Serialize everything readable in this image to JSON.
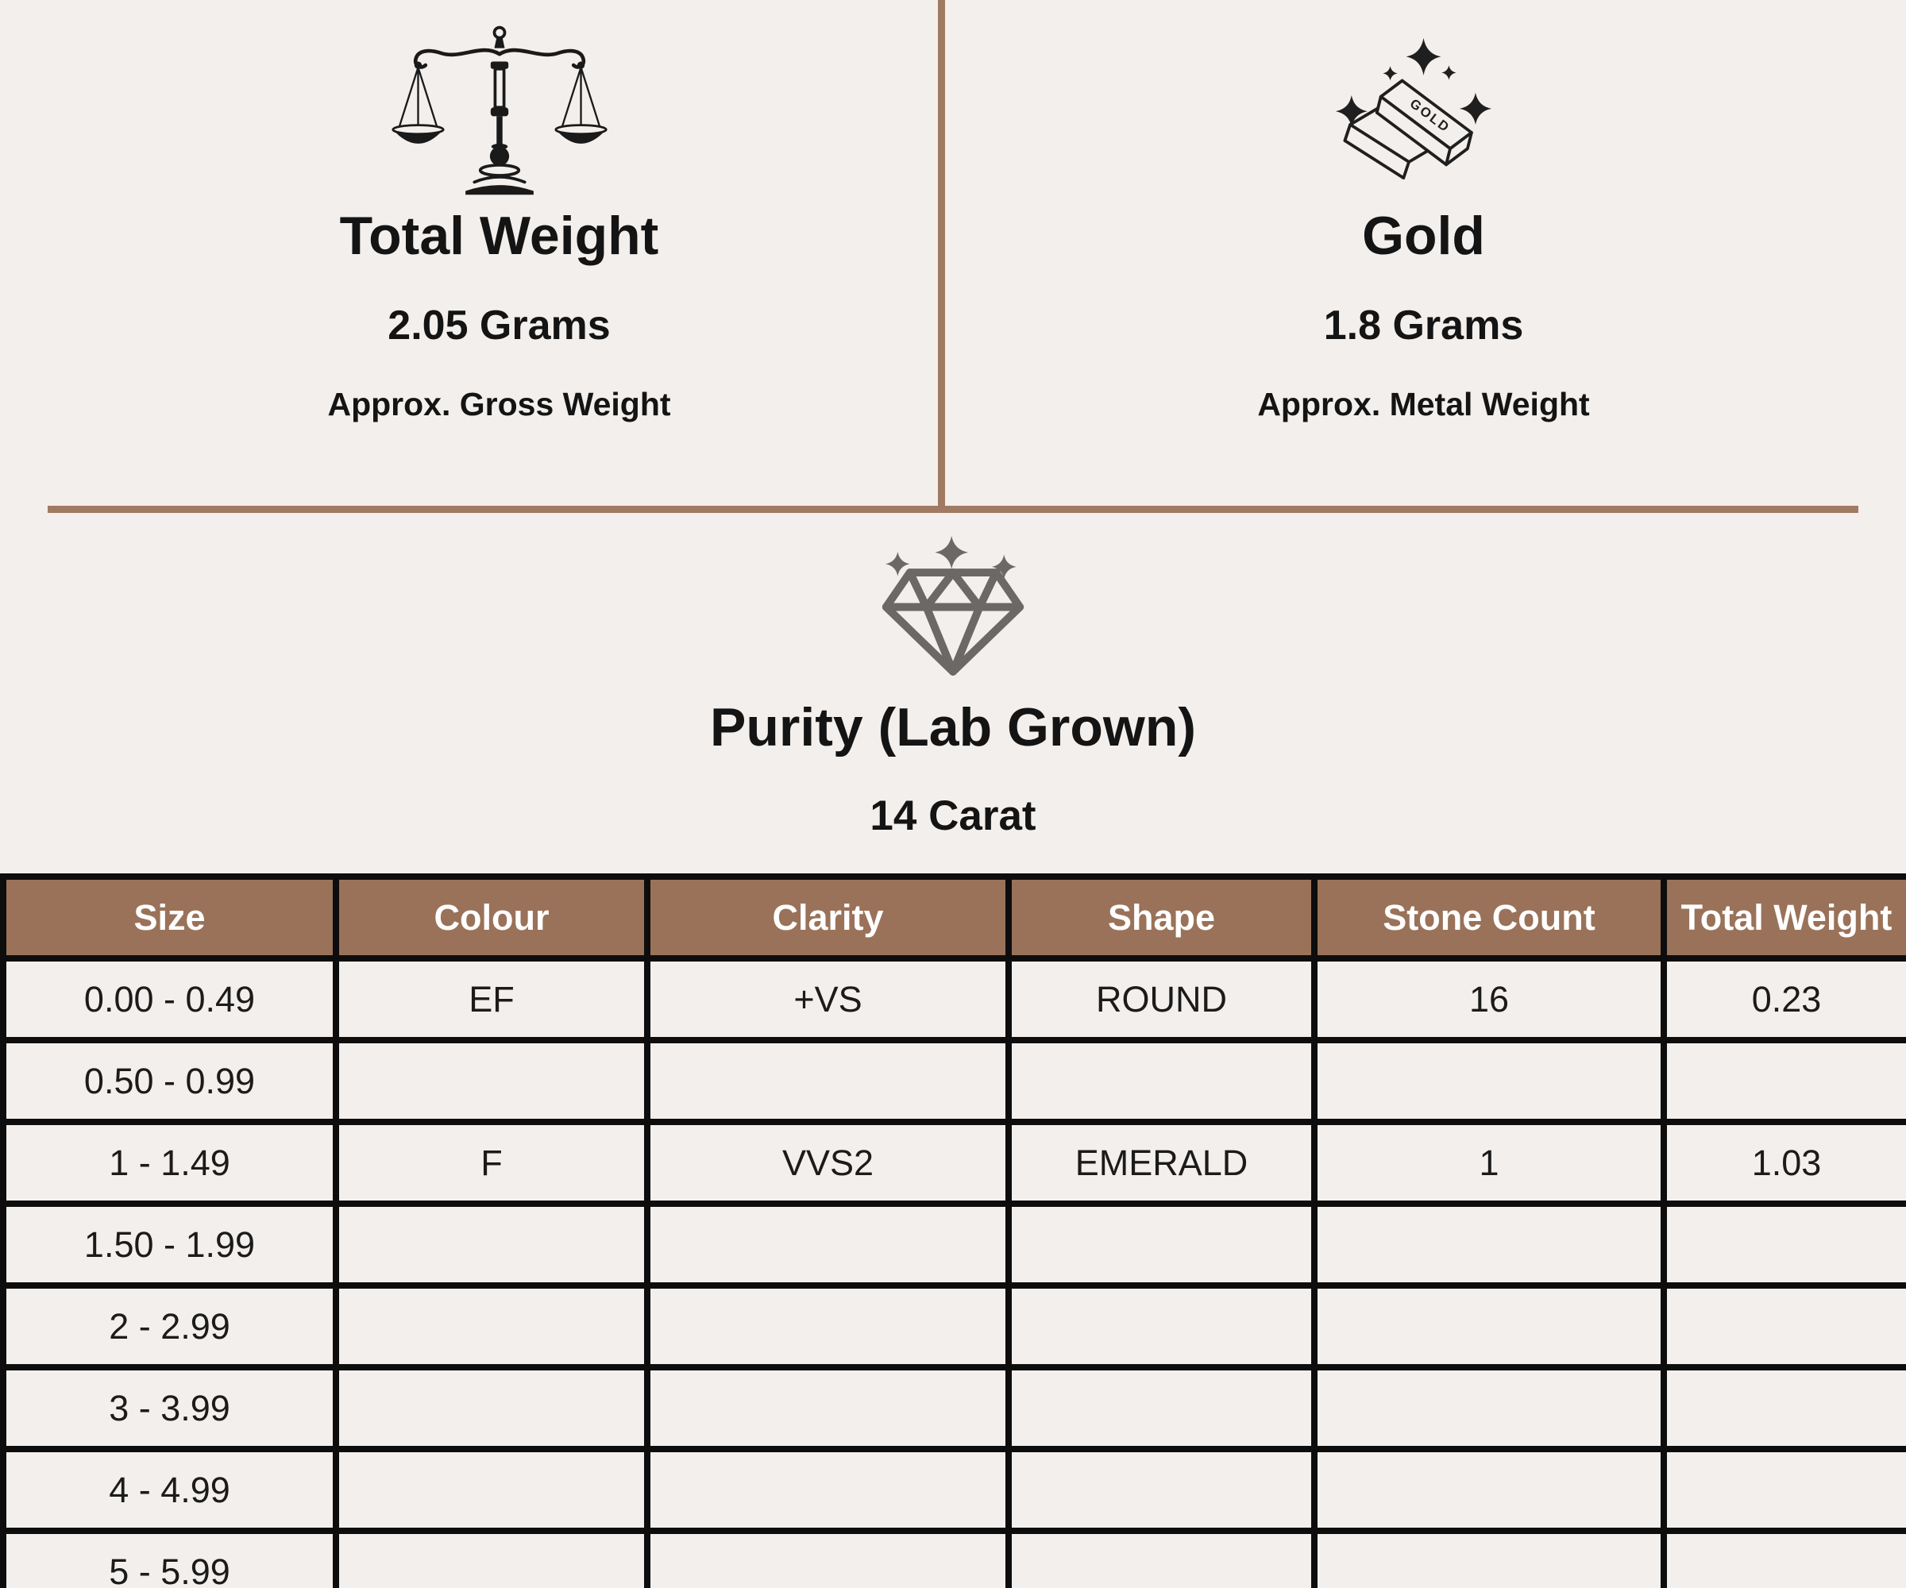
{
  "panels": {
    "total_weight": {
      "icon": "balance-scale-icon",
      "title": "Total Weight",
      "value": "2.05 Grams",
      "caption": "Approx. Gross Weight"
    },
    "gold": {
      "icon": "gold-bars-icon",
      "bar_label": "GOLD",
      "title": "Gold",
      "value": "1.8 Grams",
      "caption": "Approx. Metal Weight"
    }
  },
  "purity": {
    "icon": "diamond-sparkle-icon",
    "title": "Purity (Lab Grown)",
    "subtitle": "14 Carat"
  },
  "table": {
    "headers": [
      "Size",
      "Colour",
      "Clarity",
      "Shape",
      "Stone Count",
      "Total Weight"
    ],
    "rows": [
      [
        "0.00 - 0.49",
        "EF",
        "+VS",
        "ROUND",
        "16",
        "0.23"
      ],
      [
        "0.50 - 0.99",
        "",
        "",
        "",
        "",
        ""
      ],
      [
        "1 - 1.49",
        "F",
        "VVS2",
        "EMERALD",
        "1",
        "1.03"
      ],
      [
        "1.50 - 1.99",
        "",
        "",
        "",
        "",
        ""
      ],
      [
        "2 - 2.99",
        "",
        "",
        "",
        "",
        ""
      ],
      [
        "3 - 3.99",
        "",
        "",
        "",
        "",
        ""
      ],
      [
        "4 - 4.99",
        "",
        "",
        "",
        "",
        ""
      ],
      [
        "5 - 5.99",
        "",
        "",
        "",
        "",
        ""
      ]
    ]
  },
  "colors": {
    "background": "#f3efec",
    "divider": "#a17a62",
    "table_header_bg": "#9a7259",
    "table_header_text": "#ffffff",
    "table_border": "#0d0d0d",
    "cell_bg": "#f3efec",
    "text": "#161616",
    "diamond_gray": "#6b6865",
    "icon_ink": "#1a1a1a"
  }
}
